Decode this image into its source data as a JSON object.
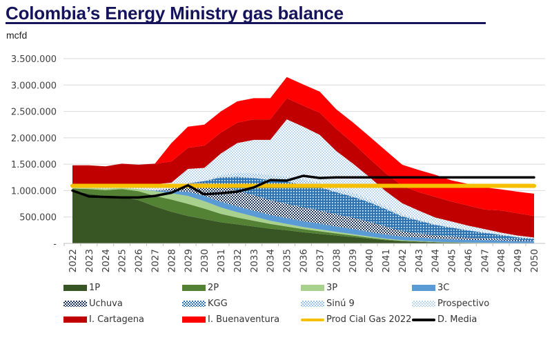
{
  "title": "Colombia’s Energy Ministry gas balance",
  "unit": "mcfd",
  "chart_data": {
    "type": "area",
    "stacked": true,
    "title": "Colombia’s Energy Ministry gas balance",
    "ylabel": "mcfd",
    "xlabel": "",
    "ylim": [
      0,
      3500000
    ],
    "yticks": [
      0,
      500000,
      1000000,
      1500000,
      2000000,
      2500000,
      3000000,
      3500000
    ],
    "ytick_labels": [
      "-",
      "500.000",
      "1.000.000",
      "1.500.000",
      "2.000.000",
      "2.500.000",
      "3.000.000",
      "3.500.000"
    ],
    "grid": true,
    "legend_position": "bottom",
    "categories": [
      "2022",
      "2023",
      "2024",
      "2025",
      "2026",
      "2027",
      "2028",
      "2029",
      "2030",
      "2031",
      "2032",
      "2033",
      "2034",
      "2035",
      "2036",
      "2037",
      "2038",
      "2039",
      "2040",
      "2041",
      "2042",
      "2043",
      "2044",
      "2045",
      "2046",
      "2047",
      "2048",
      "2049",
      "2050"
    ],
    "series": [
      {
        "name": "1P",
        "kind": "area",
        "color": "#375623",
        "pattern": "solid",
        "values": [
          1000000,
          940000,
          900000,
          880000,
          820000,
          700000,
          600000,
          520000,
          460000,
          400000,
          360000,
          320000,
          280000,
          250000,
          210000,
          180000,
          150000,
          120000,
          90000,
          60000,
          40000,
          30000,
          20000,
          15000,
          10000,
          8000,
          5000,
          3000,
          2000
        ]
      },
      {
        "name": "2P",
        "kind": "area",
        "color": "#548235",
        "pattern": "solid",
        "values": [
          40000,
          90000,
          110000,
          150000,
          170000,
          200000,
          230000,
          230000,
          200000,
          160000,
          130000,
          110000,
          90000,
          70000,
          60000,
          50000,
          40000,
          30000,
          20000,
          15000,
          10000,
          8000,
          5000,
          4000,
          3000,
          2000,
          2000,
          1000,
          1000
        ]
      },
      {
        "name": "3P",
        "kind": "area",
        "color": "#a9d18e",
        "pattern": "solid",
        "values": [
          10000,
          20000,
          30000,
          20000,
          40000,
          90000,
          120000,
          150000,
          140000,
          120000,
          100000,
          80000,
          60000,
          50000,
          40000,
          35000,
          30000,
          25000,
          20000,
          15000,
          10000,
          8000,
          6000,
          5000,
          4000,
          3000,
          2000,
          2000,
          1000
        ]
      },
      {
        "name": "3C",
        "kind": "area",
        "color": "#5b9bd5",
        "pattern": "solid",
        "values": [
          0,
          0,
          0,
          0,
          0,
          10000,
          40000,
          80000,
          100000,
          110000,
          110000,
          110000,
          110000,
          110000,
          110000,
          110000,
          100000,
          100000,
          90000,
          80000,
          70000,
          65000,
          60000,
          55000,
          50000,
          50000,
          45000,
          40000,
          40000
        ]
      },
      {
        "name": "Uchuva",
        "kind": "area",
        "color": "#1f3864",
        "pattern": "dots-dark",
        "values": [
          0,
          0,
          0,
          0,
          0,
          0,
          50000,
          160000,
          250000,
          300000,
          300000,
          290000,
          280000,
          270000,
          260000,
          250000,
          230000,
          210000,
          190000,
          150000,
          100000,
          80000,
          60000,
          50000,
          40000,
          30000,
          25000,
          20000,
          15000
        ]
      },
      {
        "name": "KGG",
        "kind": "area",
        "color": "#2e75b6",
        "pattern": "dots-blue",
        "values": [
          0,
          0,
          0,
          0,
          0,
          0,
          0,
          0,
          30000,
          160000,
          260000,
          330000,
          380000,
          420000,
          430000,
          440000,
          420000,
          400000,
          370000,
          330000,
          280000,
          240000,
          200000,
          170000,
          140000,
          110000,
          80000,
          50000,
          30000
        ]
      },
      {
        "name": "Sinú 9",
        "kind": "area",
        "color": "#9dc3e6",
        "pattern": "dots-light",
        "values": [
          0,
          0,
          0,
          0,
          0,
          0,
          0,
          0,
          0,
          50000,
          80000,
          90000,
          100000,
          100000,
          100000,
          90000,
          80000,
          70000,
          60000,
          50000,
          40000,
          30000,
          20000,
          15000,
          10000,
          8000,
          5000,
          3000,
          2000
        ]
      },
      {
        "name": "Prospectivo",
        "kind": "area",
        "color": "#deebf7",
        "pattern": "dots-pale",
        "values": [
          50000,
          50000,
          50000,
          70000,
          70000,
          120000,
          110000,
          270000,
          250000,
          400000,
          560000,
          630000,
          660000,
          1080000,
          1000000,
          900000,
          700000,
          560000,
          420000,
          290000,
          210000,
          160000,
          120000,
          100000,
          80000,
          60000,
          40000,
          30000,
          20000
        ]
      },
      {
        "name": "I. Cartagena",
        "kind": "area",
        "color": "#c00000",
        "pattern": "solid",
        "values": [
          380000,
          380000,
          370000,
          390000,
          390000,
          390000,
          400000,
          400000,
          420000,
          400000,
          390000,
          390000,
          390000,
          400000,
          400000,
          420000,
          420000,
          390000,
          350000,
          340000,
          330000,
          350000,
          390000,
          380000,
          380000,
          370000,
          420000,
          420000,
          410000
        ]
      },
      {
        "name": "I. Buenaventura",
        "kind": "area",
        "color": "#ff0000",
        "pattern": "solid",
        "values": [
          0,
          0,
          0,
          0,
          0,
          0,
          350000,
          400000,
          400000,
          400000,
          400000,
          400000,
          400000,
          400000,
          400000,
          400000,
          370000,
          390000,
          420000,
          430000,
          400000,
          420000,
          420000,
          400000,
          410000,
          420000,
          400000,
          410000,
          420000
        ]
      },
      {
        "name": "Prod Cial Gas 2022",
        "kind": "line",
        "color": "#f5c000",
        "values": [
          1090000,
          1090000,
          1090000,
          1090000,
          1090000,
          1090000,
          1090000,
          1090000,
          1090000,
          1090000,
          1090000,
          1090000,
          1090000,
          1090000,
          1090000,
          1090000,
          1090000,
          1090000,
          1090000,
          1090000,
          1090000,
          1090000,
          1090000,
          1090000,
          1090000,
          1090000,
          1090000,
          1090000,
          1090000
        ]
      },
      {
        "name": "D. Media",
        "kind": "line",
        "color": "#000000",
        "values": [
          1000000,
          890000,
          880000,
          870000,
          870000,
          900000,
          960000,
          1100000,
          930000,
          950000,
          980000,
          1060000,
          1200000,
          1190000,
          1280000,
          1240000,
          1250000,
          1250000,
          1250000,
          1250000,
          1250000,
          1250000,
          1250000,
          1250000,
          1250000,
          1250000,
          1250000,
          1250000,
          1250000
        ]
      }
    ]
  },
  "legend": [
    {
      "label": "1P"
    },
    {
      "label": "2P"
    },
    {
      "label": "3P"
    },
    {
      "label": "3C"
    },
    {
      "label": "Uchuva"
    },
    {
      "label": "KGG"
    },
    {
      "label": "Sinú 9"
    },
    {
      "label": "Prospectivo"
    },
    {
      "label": "I. Cartagena"
    },
    {
      "label": "I. Buenaventura"
    },
    {
      "label": "Prod Cial Gas 2022"
    },
    {
      "label": "D. Media"
    }
  ]
}
